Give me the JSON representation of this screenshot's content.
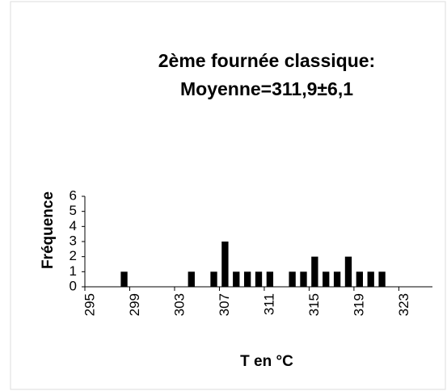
{
  "chart_data": {
    "type": "bar",
    "title": "2ème fournée classique:",
    "subtitle": "Moyenne=311,9±6,1",
    "x_label": "T en °C",
    "y_label": "Fréquence",
    "categories": [
      295,
      null,
      null,
      null,
      299,
      null,
      null,
      null,
      303,
      null,
      null,
      null,
      307,
      null,
      null,
      null,
      311,
      null,
      null,
      null,
      315,
      null,
      null,
      null,
      319,
      null,
      null,
      null,
      323,
      null,
      null
    ],
    "values": [
      0,
      0,
      0,
      1,
      0,
      0,
      0,
      0,
      0,
      1,
      0,
      1,
      3,
      1,
      1,
      1,
      1,
      0,
      1,
      1,
      2,
      1,
      1,
      2,
      1,
      1,
      1,
      0,
      0,
      0,
      0
    ],
    "color": "#000000",
    "ylim": [
      0,
      6
    ],
    "yticks": [
      0,
      1,
      2,
      3,
      4,
      5,
      6
    ]
  }
}
